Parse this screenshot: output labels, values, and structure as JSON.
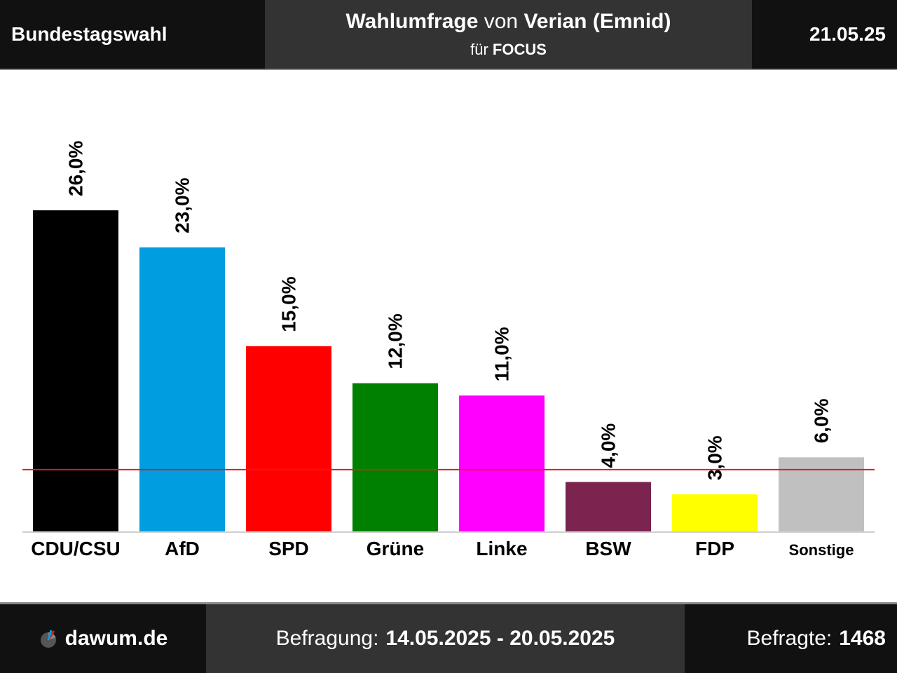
{
  "header": {
    "left_title": "Bundestagswahl",
    "headline_bold1": "Wahlumfrage",
    "headline_mid": "von",
    "headline_bold2": "Verian (Emnid)",
    "sub_prefix": "für",
    "sub_bold": "FOCUS",
    "date": "21.05.25"
  },
  "footer": {
    "logo_text": "dawum.de",
    "period_label": "Befragung:",
    "period_value": "14.05.2025 - 20.05.2025",
    "sample_label": "Befragte:",
    "sample_value": "1468"
  },
  "chart_data": {
    "type": "bar",
    "categories": [
      "CDU/CSU",
      "AfD",
      "SPD",
      "Grüne",
      "Linke",
      "BSW",
      "FDP",
      "Sonstige"
    ],
    "values": [
      26.0,
      23.0,
      15.0,
      12.0,
      11.0,
      4.0,
      3.0,
      6.0
    ],
    "value_labels": [
      "26,0%",
      "23,0%",
      "15,0%",
      "12,0%",
      "11,0%",
      "4,0%",
      "3,0%",
      "6,0%"
    ],
    "colors": [
      "#000000",
      "#009ee0",
      "#ff0000",
      "#008000",
      "#ff00ff",
      "#7b2450",
      "#ffff00",
      "#c0c0c0"
    ],
    "threshold": 5.0,
    "threshold_color": "#e41a1c",
    "ylim": [
      0,
      26
    ],
    "grid": false,
    "legend": "none"
  }
}
